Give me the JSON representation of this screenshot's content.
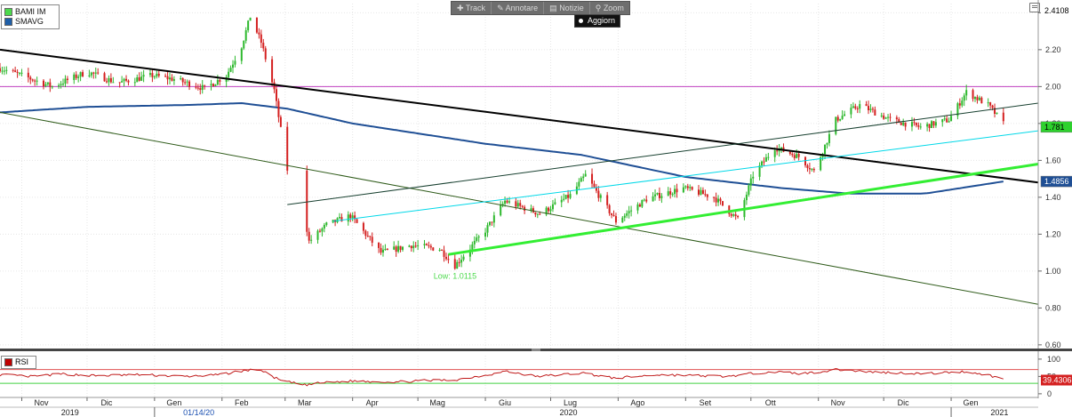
{
  "toolbar": {
    "items": [
      {
        "icon": "plus-icon",
        "glyph": "✚",
        "label": "Track"
      },
      {
        "icon": "pencil-icon",
        "glyph": "✎",
        "label": "Annotare"
      },
      {
        "icon": "news-icon",
        "glyph": "▤",
        "label": "Notizie"
      },
      {
        "icon": "magnifier-icon",
        "glyph": "⚲",
        "label": "Zoom"
      }
    ]
  },
  "refresh_button": {
    "label": "Aggiorn"
  },
  "legend": {
    "items": [
      {
        "label": "BAMI IM",
        "color": "#4cd94c"
      },
      {
        "label": "SMAVG",
        "color": "#1f5fa8"
      }
    ]
  },
  "rsi_legend": {
    "label": "RSI",
    "color": "#c00000"
  },
  "colors": {
    "up": "#2db82d",
    "down": "#d42020",
    "sma": "#1f4f95",
    "hline": "#c040c0"
  },
  "chart_data": {
    "type": "candlestick",
    "main": {
      "ylim": [
        0.58,
        2.45
      ],
      "yticks": [
        "0.60",
        "0.80",
        "1.00",
        "1.20",
        "1.40",
        "1.60",
        "1.80",
        "2.00",
        "2.20",
        "2.40"
      ],
      "price_labels": [
        {
          "text": "2.4108",
          "value": 2.4108,
          "color": "#ffffff",
          "text_color": "#000000"
        },
        {
          "text": "1.781",
          "value": 1.781,
          "color": "#2ed12e",
          "text_color": "#000000"
        },
        {
          "text": "1.4856",
          "value": 1.4856,
          "color": "#1f4f95",
          "text_color": "#ffffff"
        }
      ],
      "annotation": {
        "text": "Low: 1.0115",
        "date": "2020-05-18",
        "value": 1.0115
      },
      "horizontal_line": {
        "value": 2.0,
        "color": "#c040c0"
      },
      "trend_lines": [
        {
          "start": [
            "2019-10-22",
            2.2
          ],
          "end": [
            "2021-02-10",
            1.48
          ],
          "color": "#000000",
          "width": 2
        },
        {
          "start": [
            "2019-10-22",
            1.86
          ],
          "end": [
            "2021-02-10",
            0.82
          ],
          "color": "#2f5b1a",
          "width": 1
        },
        {
          "start": [
            "2020-03-02",
            1.36
          ],
          "end": [
            "2021-02-10",
            1.91
          ],
          "color": "#184030",
          "width": 1
        },
        {
          "start": [
            "2020-03-23",
            1.27
          ],
          "end": [
            "2021-02-10",
            1.76
          ],
          "color": "#00d8e8",
          "width": 1
        },
        {
          "start": [
            "2020-05-15",
            1.09
          ],
          "end": [
            "2021-02-10",
            1.58
          ],
          "color": "#33ee33",
          "width": 3
        }
      ],
      "price_anchors": [
        [
          "2019-10-22",
          2.1
        ],
        [
          "2019-11-01",
          2.06
        ],
        [
          "2019-11-15",
          2.0
        ],
        [
          "2019-12-01",
          2.08
        ],
        [
          "2019-12-15",
          2.02
        ],
        [
          "2019-12-31",
          2.06
        ],
        [
          "2020-01-10",
          2.04
        ],
        [
          "2020-01-24",
          1.99
        ],
        [
          "2020-02-03",
          2.06
        ],
        [
          "2020-02-10",
          2.22
        ],
        [
          "2020-02-14",
          2.38
        ],
        [
          "2020-02-19",
          2.24
        ],
        [
          "2020-02-25",
          1.98
        ],
        [
          "2020-03-02",
          1.55
        ],
        [
          "2020-03-09",
          1.36
        ],
        [
          "2020-03-12",
          1.16
        ],
        [
          "2020-03-20",
          1.25
        ],
        [
          "2020-03-31",
          1.3
        ],
        [
          "2020-04-14",
          1.1
        ],
        [
          "2020-04-28",
          1.14
        ],
        [
          "2020-05-11",
          1.12
        ],
        [
          "2020-05-18",
          1.03
        ],
        [
          "2020-06-01",
          1.22
        ],
        [
          "2020-06-10",
          1.38
        ],
        [
          "2020-06-26",
          1.31
        ],
        [
          "2020-07-10",
          1.41
        ],
        [
          "2020-07-17",
          1.52
        ],
        [
          "2020-07-31",
          1.27
        ],
        [
          "2020-08-14",
          1.39
        ],
        [
          "2020-08-31",
          1.45
        ],
        [
          "2020-09-14",
          1.4
        ],
        [
          "2020-09-25",
          1.28
        ],
        [
          "2020-10-02",
          1.52
        ],
        [
          "2020-10-12",
          1.67
        ],
        [
          "2020-10-23",
          1.62
        ],
        [
          "2020-10-30",
          1.54
        ],
        [
          "2020-11-09",
          1.82
        ],
        [
          "2020-11-20",
          1.9
        ],
        [
          "2020-12-04",
          1.82
        ],
        [
          "2020-12-18",
          1.78
        ],
        [
          "2020-12-31",
          1.82
        ],
        [
          "2021-01-08",
          1.97
        ],
        [
          "2021-01-18",
          1.9
        ],
        [
          "2021-01-25",
          1.8
        ]
      ],
      "sma_anchors": [
        [
          "2019-10-22",
          1.86
        ],
        [
          "2019-12-01",
          1.89
        ],
        [
          "2020-01-15",
          1.9
        ],
        [
          "2020-02-10",
          1.91
        ],
        [
          "2020-03-02",
          1.88
        ],
        [
          "2020-04-01",
          1.8
        ],
        [
          "2020-06-01",
          1.69
        ],
        [
          "2020-07-15",
          1.63
        ],
        [
          "2020-09-01",
          1.51
        ],
        [
          "2020-10-15",
          1.45
        ],
        [
          "2020-11-15",
          1.42
        ],
        [
          "2020-12-20",
          1.42
        ],
        [
          "2021-01-25",
          1.4856
        ]
      ]
    },
    "rsi": {
      "label": "RSI",
      "ylim": [
        -8,
        110
      ],
      "yticks": [
        "0",
        "50",
        "100"
      ],
      "levels": [
        {
          "value": 70,
          "color": "#e05050"
        },
        {
          "value": 30,
          "color": "#40d040"
        }
      ],
      "current_label": {
        "text": "39.4306",
        "value": 39.4306,
        "color": "#d42020"
      },
      "anchors": [
        [
          "2019-10-22",
          55
        ],
        [
          "2019-11-05",
          50
        ],
        [
          "2019-11-20",
          57
        ],
        [
          "2019-12-05",
          52
        ],
        [
          "2019-12-25",
          55
        ],
        [
          "2020-01-15",
          50
        ],
        [
          "2020-01-30",
          54
        ],
        [
          "2020-02-10",
          66
        ],
        [
          "2020-02-18",
          70
        ],
        [
          "2020-02-28",
          38
        ],
        [
          "2020-03-10",
          25
        ],
        [
          "2020-03-17",
          31
        ],
        [
          "2020-04-01",
          37
        ],
        [
          "2020-04-20",
          34
        ],
        [
          "2020-05-05",
          38
        ],
        [
          "2020-05-18",
          40
        ],
        [
          "2020-06-05",
          58
        ],
        [
          "2020-06-10",
          65
        ],
        [
          "2020-06-25",
          50
        ],
        [
          "2020-07-16",
          60
        ],
        [
          "2020-07-30",
          45
        ],
        [
          "2020-08-20",
          55
        ],
        [
          "2020-09-20",
          50
        ],
        [
          "2020-10-10",
          64
        ],
        [
          "2020-10-25",
          58
        ],
        [
          "2020-11-10",
          70
        ],
        [
          "2020-11-25",
          63
        ],
        [
          "2020-12-20",
          58
        ],
        [
          "2021-01-08",
          64
        ],
        [
          "2021-01-18",
          54
        ],
        [
          "2021-01-25",
          42
        ]
      ]
    },
    "x_axis": {
      "range": [
        "2019-10-22",
        "2021-02-10"
      ],
      "months": [
        {
          "label": "Nov",
          "date": "2019-11-01"
        },
        {
          "label": "Dic",
          "date": "2019-12-01"
        },
        {
          "label": "Gen",
          "date": "2020-01-01"
        },
        {
          "label": "Feb",
          "date": "2020-02-01"
        },
        {
          "label": "Mar",
          "date": "2020-03-01"
        },
        {
          "label": "Apr",
          "date": "2020-04-01"
        },
        {
          "label": "Mag",
          "date": "2020-05-01"
        },
        {
          "label": "Giu",
          "date": "2020-06-01"
        },
        {
          "label": "Lug",
          "date": "2020-07-01"
        },
        {
          "label": "Ago",
          "date": "2020-08-01"
        },
        {
          "label": "Set",
          "date": "2020-09-01"
        },
        {
          "label": "Ott",
          "date": "2020-10-01"
        },
        {
          "label": "Nov",
          "date": "2020-11-01"
        },
        {
          "label": "Dic",
          "date": "2020-12-01"
        },
        {
          "label": "Gen",
          "date": "2021-01-01"
        }
      ],
      "years": [
        {
          "label": "2019",
          "date": "2019-11-15"
        },
        {
          "label": "2020",
          "date": "2020-07-01"
        },
        {
          "label": "2021",
          "date": "2021-01-15"
        }
      ],
      "cursor": {
        "label": "01/14/20",
        "date": "2020-01-14"
      }
    }
  }
}
